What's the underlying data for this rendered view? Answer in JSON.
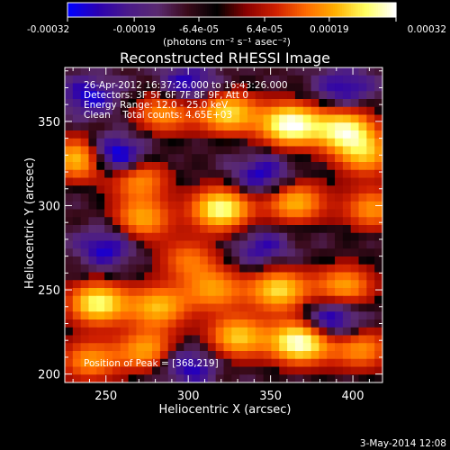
{
  "colorbar": {
    "tick_labels": [
      "-0.00032",
      "-0.00019",
      "-6.4e-05",
      "6.4e-05",
      "0.00019",
      "0.00032"
    ],
    "tick_values": [
      -0.00032,
      -0.00019,
      -6.4e-05,
      6.4e-05,
      0.00019,
      0.00032
    ],
    "range": [
      -0.00032,
      0.00032
    ],
    "units_label": "(photons cm⁻² s⁻¹ asec⁻²)",
    "colormap": [
      "#0000ff",
      "#2b00b0",
      "#4a1a8a",
      "#5a2a70",
      "#3a0a1a",
      "#000000",
      "#8a0000",
      "#d02000",
      "#ff6a00",
      "#ffb000",
      "#ffff60",
      "#ffffff"
    ]
  },
  "chart_data": {
    "type": "heatmap",
    "title": "Reconstructed RHESSI Image",
    "xlabel": "Heliocentric X (arcsec)",
    "ylabel": "Heliocentric Y (arcsec)",
    "xlim": [
      225,
      418
    ],
    "ylim": [
      195,
      382
    ],
    "x_ticks": [
      250,
      300,
      350,
      400
    ],
    "y_ticks": [
      200,
      250,
      300,
      350
    ],
    "x_tick_labels": [
      "250",
      "300",
      "350",
      "400"
    ],
    "y_tick_labels": [
      "200",
      "250",
      "300",
      "350"
    ],
    "annotations": [
      "26-Apr-2012 16:37:26.000 to 16:43:26.000",
      "Detectors: 3F 5F 6F 7F 8F 9F, Att 0",
      "Energy Range: 12.0 - 25.0 keV",
      "Clean    Total counts: 4.65E+03"
    ],
    "peak_label": "Position of Peak = [368,219]",
    "peak": [
      368,
      219
    ],
    "sources": [
      {
        "x": 362,
        "y": 348,
        "intensity": 1.0
      },
      {
        "x": 324,
        "y": 355,
        "intensity": 0.75
      },
      {
        "x": 285,
        "y": 355,
        "intensity": 0.55
      },
      {
        "x": 395,
        "y": 345,
        "intensity": 0.85
      },
      {
        "x": 235,
        "y": 328,
        "intensity": 0.8
      },
      {
        "x": 270,
        "y": 316,
        "intensity": 0.55
      },
      {
        "x": 320,
        "y": 298,
        "intensity": 0.9
      },
      {
        "x": 272,
        "y": 292,
        "intensity": 0.6
      },
      {
        "x": 365,
        "y": 302,
        "intensity": 0.65
      },
      {
        "x": 408,
        "y": 330,
        "intensity": 0.6
      },
      {
        "x": 412,
        "y": 298,
        "intensity": 0.55
      },
      {
        "x": 355,
        "y": 250,
        "intensity": 0.75
      },
      {
        "x": 395,
        "y": 252,
        "intensity": 0.6
      },
      {
        "x": 245,
        "y": 242,
        "intensity": 0.85
      },
      {
        "x": 282,
        "y": 240,
        "intensity": 0.65
      },
      {
        "x": 316,
        "y": 250,
        "intensity": 0.55
      },
      {
        "x": 368,
        "y": 219,
        "intensity": 1.0
      },
      {
        "x": 330,
        "y": 222,
        "intensity": 0.7
      },
      {
        "x": 275,
        "y": 214,
        "intensity": 0.6
      },
      {
        "x": 240,
        "y": 208,
        "intensity": 0.55
      },
      {
        "x": 405,
        "y": 215,
        "intensity": 0.55
      },
      {
        "x": 300,
        "y": 268,
        "intensity": 0.45
      }
    ],
    "negative_sources": [
      {
        "x": 255,
        "y": 330,
        "intensity": 0.8
      },
      {
        "x": 250,
        "y": 275,
        "intensity": 0.5
      },
      {
        "x": 345,
        "y": 318,
        "intensity": 0.5
      },
      {
        "x": 300,
        "y": 372,
        "intensity": 0.5
      },
      {
        "x": 395,
        "y": 370,
        "intensity": 0.45
      },
      {
        "x": 388,
        "y": 232,
        "intensity": 0.6
      },
      {
        "x": 300,
        "y": 205,
        "intensity": 0.5
      },
      {
        "x": 240,
        "y": 365,
        "intensity": 0.5
      },
      {
        "x": 345,
        "y": 275,
        "intensity": 0.4
      }
    ]
  },
  "footer": {
    "timestamp": "3-May-2014 12:08"
  }
}
